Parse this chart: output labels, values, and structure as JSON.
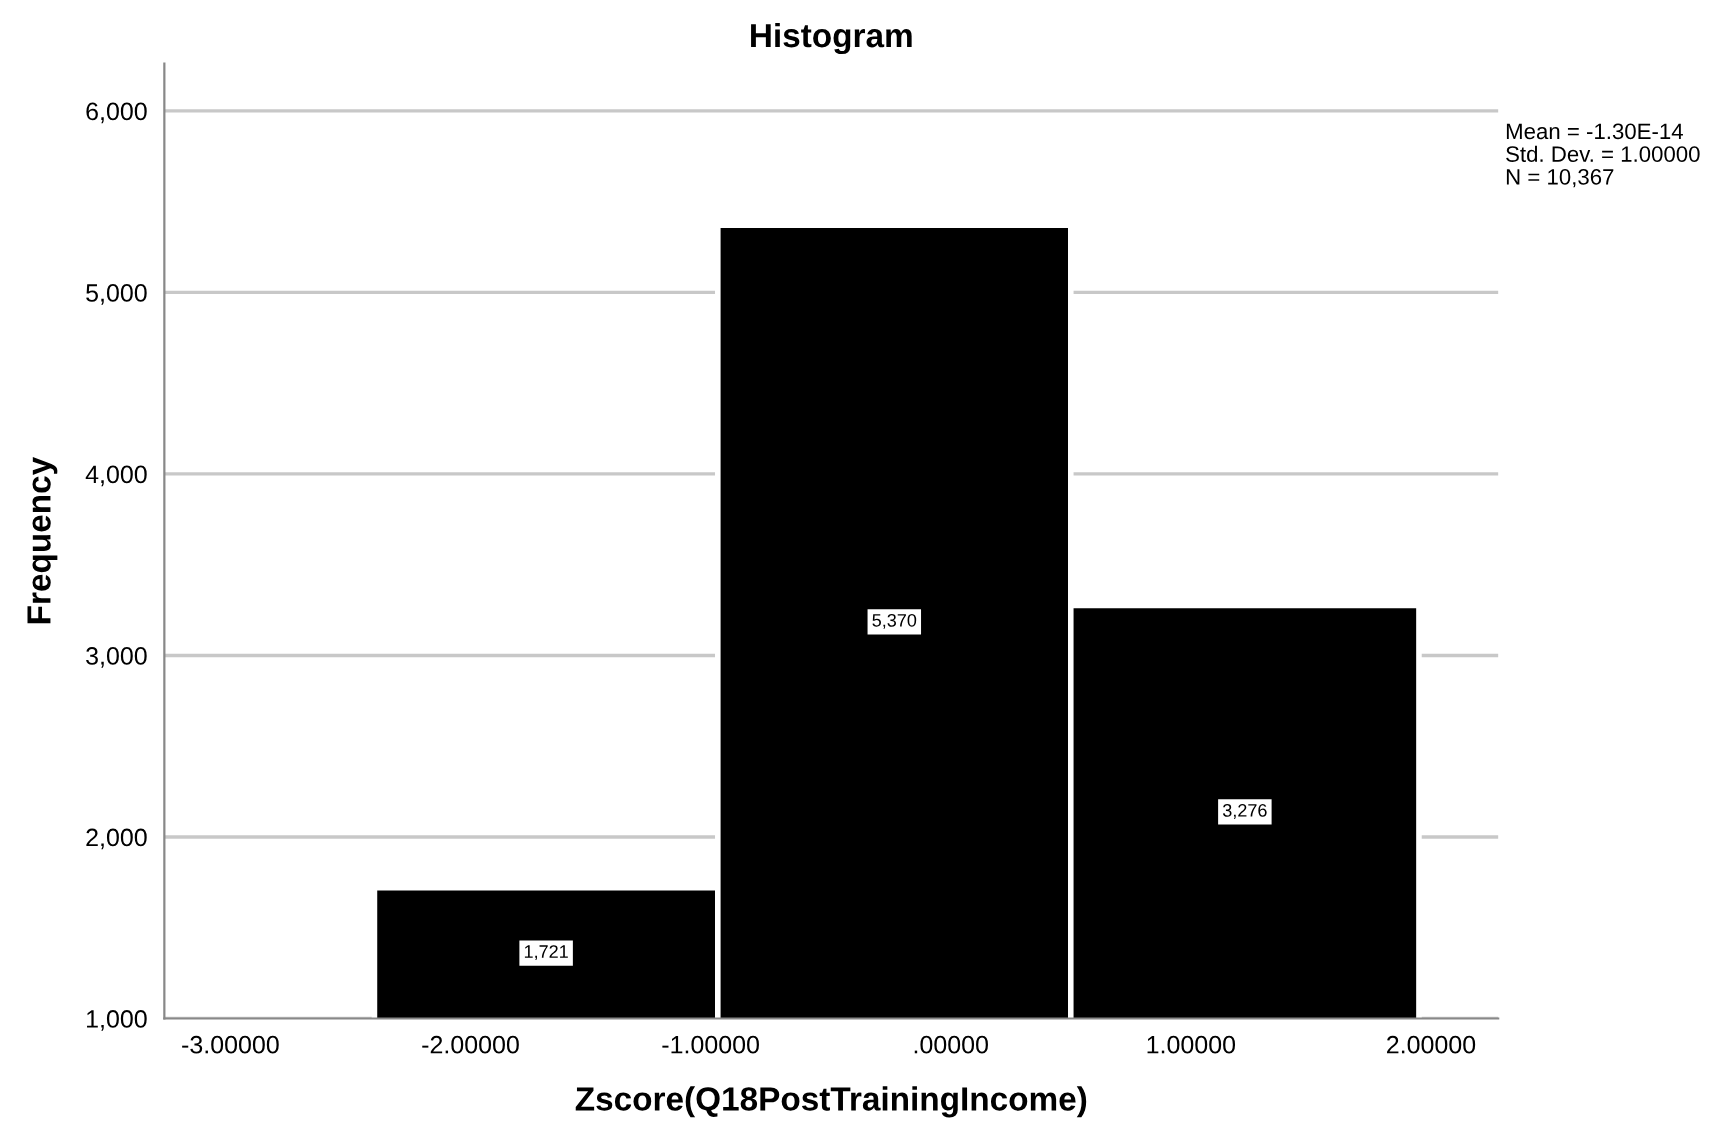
{
  "chart_data": {
    "type": "histogram",
    "title": "Histogram",
    "xlabel": "Zscore(Q18PostTrainingIncome)",
    "ylabel": "Frequency",
    "bins": [
      -2.4,
      -0.97,
      0.5,
      1.95
    ],
    "values": [
      1721,
      5370,
      3276
    ],
    "color": "#000000",
    "value_labels": [
      "1,721",
      "5,370",
      "3,276"
    ],
    "xlim": [
      -3.275,
      2.28
    ],
    "xticks": [
      {
        "value": -3,
        "label": "-3.00000"
      },
      {
        "value": -2,
        "label": "-2.00000"
      },
      {
        "value": -1,
        "label": "-1.00000"
      },
      {
        "value": 0,
        "label": ".00000"
      },
      {
        "value": 1,
        "label": "1.00000"
      },
      {
        "value": 2,
        "label": "2.00000"
      }
    ],
    "ylim": [
      1000,
      6260
    ],
    "yticks": [
      {
        "value": 1000,
        "label": "1,000"
      },
      {
        "value": 2000,
        "label": "2,000"
      },
      {
        "value": 3000,
        "label": "3,000"
      },
      {
        "value": 4000,
        "label": "4,000"
      },
      {
        "value": 5000,
        "label": "5,000"
      },
      {
        "value": 6000,
        "label": "6,000"
      }
    ],
    "grid": "y",
    "annotations": [
      "Mean = -1.30E-14",
      "Std. Dev. = 1.00000",
      "N = 10,367"
    ]
  }
}
